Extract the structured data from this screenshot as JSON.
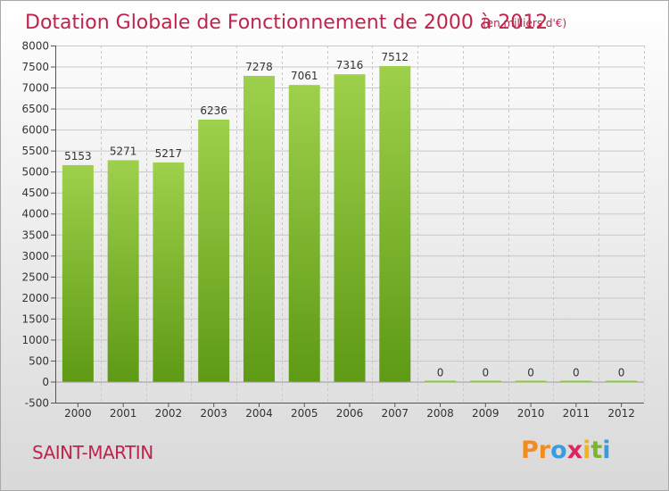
{
  "chart_data": {
    "type": "bar",
    "title": "Dotation Globale de Fonctionnement de 2000 à 2012",
    "subtitle": "(en milliers d'€)",
    "categories": [
      "2000",
      "2001",
      "2002",
      "2003",
      "2004",
      "2005",
      "2006",
      "2007",
      "2008",
      "2009",
      "2010",
      "2011",
      "2012"
    ],
    "values": [
      5153,
      5271,
      5217,
      6236,
      7278,
      7061,
      7316,
      7512,
      0,
      0,
      0,
      0,
      0
    ],
    "ylim": [
      -500,
      8000
    ],
    "yticks": [
      -500,
      0,
      500,
      1000,
      1500,
      2000,
      2500,
      3000,
      3500,
      4000,
      4500,
      5000,
      5500,
      6000,
      6500,
      7000,
      7500,
      8000
    ],
    "grid": true,
    "colors": {
      "bar_top": "#9ed04c",
      "bar_bottom": "#5e9a14",
      "grid": "#c8c8c8",
      "title": "#c0234b"
    }
  },
  "footer": {
    "commune": "SAINT-MARTIN",
    "logo_letters": [
      "P",
      "r",
      "o",
      "x",
      "i",
      "t",
      "i"
    ],
    "logo_colors": [
      "#f28c1e",
      "#f28c1e",
      "#3a9be0",
      "#e0245e",
      "#f2b31e",
      "#7ab829",
      "#3a9be0"
    ]
  }
}
